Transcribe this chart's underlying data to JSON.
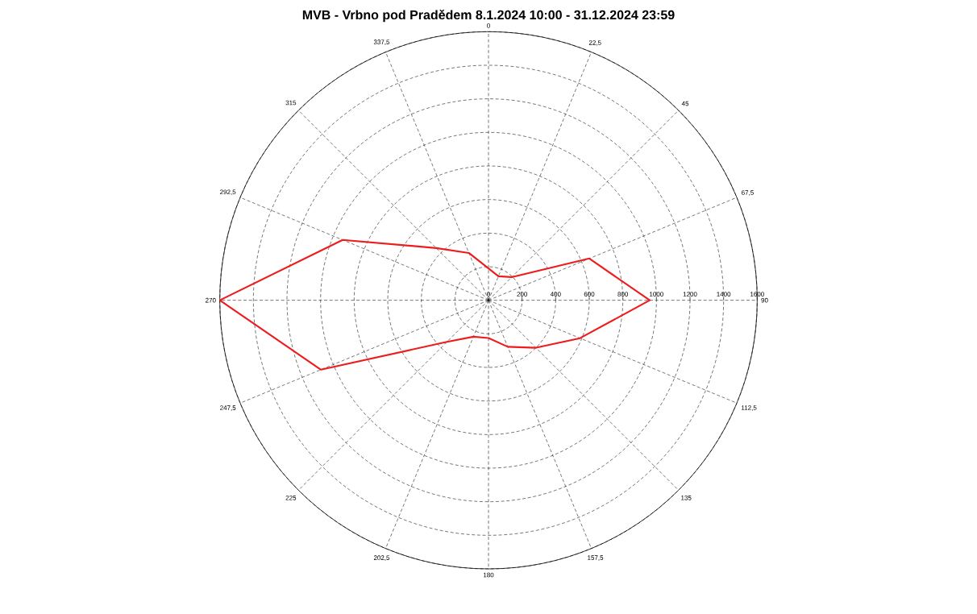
{
  "chart_data": {
    "type": "radar",
    "title": "MVB - Vrbno pod Pradědem   8.1.2024  10:00 - 31.12.2024  23:59",
    "categories": [
      "0",
      "22,5",
      "45",
      "67,5",
      "90",
      "112,5",
      "135",
      "157,5",
      "180",
      "202,5",
      "225",
      "247,5",
      "270",
      "292,5",
      "315",
      "337,5"
    ],
    "series": [
      {
        "color": "#ee1c1c",
        "values": [
          190,
          155,
          195,
          650,
          960,
          590,
          400,
          300,
          225,
          235,
          350,
          1080,
          1600,
          940,
          440,
          305
        ]
      }
    ],
    "ylim": [
      0,
      1600
    ],
    "yticks": [
      0,
      200,
      400,
      600,
      800,
      1000,
      1200,
      1400,
      1600
    ],
    "grid": true
  }
}
